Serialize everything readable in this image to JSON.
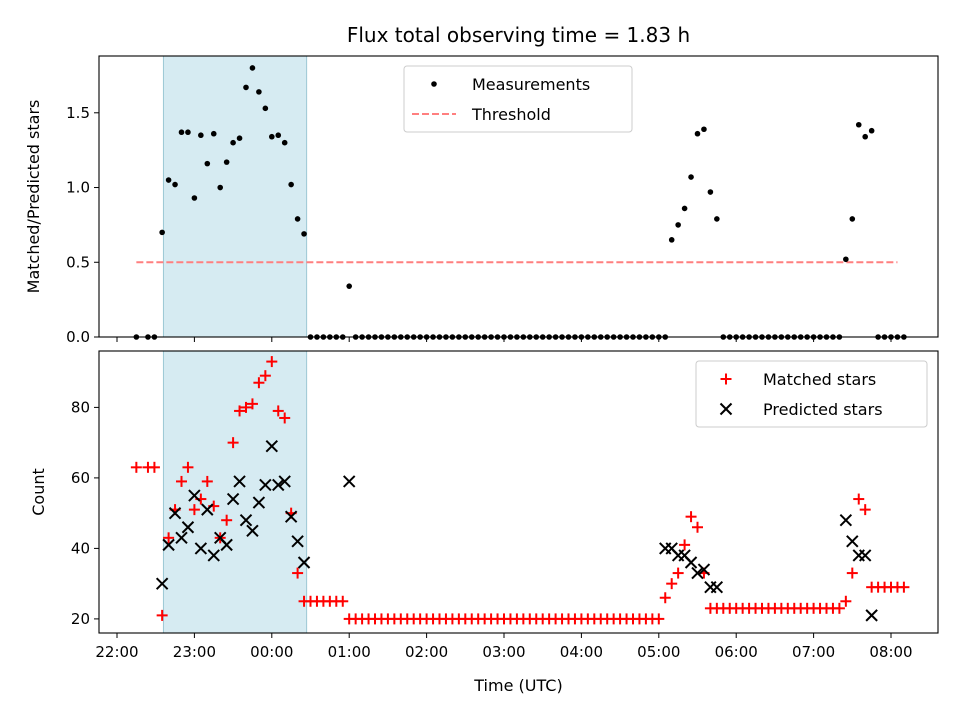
{
  "chart_data": [
    {
      "type": "scatter",
      "title": "Flux total observing time = 1.83 h",
      "ylabel": "Matched/Predicted stars",
      "xlabel": "",
      "xlim": [
        "22:00",
        "08:00"
      ],
      "ylim": [
        0,
        1.88
      ],
      "yticks": [
        "0.0",
        "0.5",
        "1.0",
        "1.5"
      ],
      "shaded_interval": [
        "22:36",
        "00:27"
      ],
      "legend_position": "top-center",
      "series": [
        {
          "name": "Measurements",
          "color": "#000000",
          "marker": "dot",
          "x": [
            "22:15",
            "22:24",
            "22:29",
            "22:35",
            "22:40",
            "22:45",
            "22:50",
            "22:55",
            "23:00",
            "23:05",
            "23:10",
            "23:15",
            "23:20",
            "23:25",
            "23:30",
            "23:35",
            "23:40",
            "23:45",
            "23:50",
            "23:55",
            "24:00",
            "24:05",
            "24:10",
            "24:15",
            "24:20",
            "24:25",
            "24:30",
            "24:35",
            "24:40",
            "24:45",
            "24:50",
            "24:55",
            "25:00",
            "25:05",
            "25:10",
            "25:15",
            "25:20",
            "25:25",
            "25:30",
            "25:35",
            "25:40",
            "25:45",
            "25:50",
            "25:55",
            "26:00",
            "26:05",
            "26:10",
            "26:15",
            "26:20",
            "26:25",
            "26:30",
            "26:35",
            "26:40",
            "26:45",
            "26:50",
            "26:55",
            "27:00",
            "27:05",
            "27:10",
            "27:15",
            "27:20",
            "27:25",
            "27:30",
            "27:35",
            "27:40",
            "27:45",
            "27:50",
            "27:55",
            "28:00",
            "28:05",
            "28:10",
            "28:15",
            "28:20",
            "28:25",
            "28:30",
            "28:35",
            "28:40",
            "28:45",
            "28:50",
            "28:55",
            "29:00",
            "29:05",
            "29:10",
            "29:15",
            "29:20",
            "29:25",
            "29:30",
            "29:35",
            "29:40",
            "29:45",
            "29:50",
            "29:55",
            "30:00",
            "30:05",
            "30:10",
            "30:15",
            "30:20",
            "30:25",
            "30:30",
            "30:35",
            "30:40",
            "30:45",
            "30:50",
            "30:55",
            "31:00",
            "31:05",
            "31:10",
            "31:15",
            "31:20",
            "31:25",
            "31:30",
            "31:35",
            "31:40",
            "31:45",
            "31:50",
            "31:55",
            "32:00",
            "32:05",
            "32:10"
          ],
          "y": [
            0,
            0,
            0,
            0.7,
            1.05,
            1.02,
            1.37,
            1.37,
            0.93,
            1.35,
            1.16,
            1.36,
            1.0,
            1.17,
            1.3,
            1.33,
            1.67,
            1.8,
            1.64,
            1.53,
            1.34,
            1.35,
            1.3,
            1.02,
            0.79,
            0.69,
            0,
            0,
            0,
            0,
            0,
            0,
            0.34,
            0,
            0,
            0,
            0,
            0,
            0,
            0,
            0,
            0,
            0,
            0,
            0,
            0,
            0,
            0,
            0,
            0,
            0,
            0,
            0,
            0,
            0,
            0,
            0,
            0,
            0,
            0,
            0,
            0,
            0,
            0,
            0,
            0,
            0,
            0,
            0,
            0,
            0,
            0,
            0,
            0,
            0,
            0,
            0,
            0,
            0,
            0,
            0,
            0,
            0.65,
            0.75,
            0.86,
            1.07,
            1.36,
            1.39,
            0.97,
            0.79,
            0,
            0,
            0,
            0,
            0,
            0,
            0,
            0,
            0,
            0,
            0,
            0,
            0,
            0,
            0,
            0,
            0,
            0,
            0,
            0.52,
            0.79,
            1.42,
            1.34,
            1.38,
            0,
            0,
            0,
            0,
            0
          ]
        },
        {
          "name": "Threshold",
          "color": "#ff7f7f",
          "style": "dashed",
          "x": [
            "22:15",
            "32:05"
          ],
          "y": [
            0.5,
            0.5
          ]
        }
      ]
    },
    {
      "type": "scatter",
      "title": "",
      "ylabel": "Count",
      "xlabel": "Time (UTC)",
      "xlim": [
        "22:00",
        "08:00"
      ],
      "ylim": [
        16,
        96
      ],
      "yticks": [
        "20",
        "40",
        "60",
        "80"
      ],
      "xticks": [
        "22:00",
        "23:00",
        "00:00",
        "01:00",
        "02:00",
        "03:00",
        "04:00",
        "05:00",
        "06:00",
        "07:00",
        "08:00"
      ],
      "shaded_interval": [
        "22:36",
        "00:27"
      ],
      "legend_position": "top-right",
      "series": [
        {
          "name": "Matched stars",
          "color": "#ff0000",
          "marker": "plus",
          "x": [
            "22:15",
            "22:24",
            "22:29",
            "22:35",
            "22:40",
            "22:45",
            "22:50",
            "22:55",
            "23:00",
            "23:05",
            "23:10",
            "23:15",
            "23:20",
            "23:25",
            "23:30",
            "23:35",
            "23:40",
            "23:45",
            "23:50",
            "23:55",
            "24:00",
            "24:05",
            "24:10",
            "24:15",
            "24:20",
            "24:25",
            "24:30",
            "24:35",
            "24:40",
            "24:45",
            "24:50",
            "24:55",
            "25:00",
            "25:05",
            "25:10",
            "25:15",
            "25:20",
            "25:25",
            "25:30",
            "25:35",
            "25:40",
            "25:45",
            "25:50",
            "25:55",
            "26:00",
            "26:05",
            "26:10",
            "26:15",
            "26:20",
            "26:25",
            "26:30",
            "26:35",
            "26:40",
            "26:45",
            "26:50",
            "26:55",
            "27:00",
            "27:05",
            "27:10",
            "27:15",
            "27:20",
            "27:25",
            "27:30",
            "27:35",
            "27:40",
            "27:45",
            "27:50",
            "27:55",
            "28:00",
            "28:05",
            "28:10",
            "28:15",
            "28:20",
            "28:25",
            "28:30",
            "28:35",
            "28:40",
            "28:45",
            "28:50",
            "28:55",
            "29:00",
            "29:05",
            "29:10",
            "29:15",
            "29:20",
            "29:25",
            "29:30",
            "29:35",
            "29:40",
            "29:45",
            "29:50",
            "29:55",
            "30:00",
            "30:05",
            "30:10",
            "30:15",
            "30:20",
            "30:25",
            "30:30",
            "30:35",
            "30:40",
            "30:45",
            "30:50",
            "30:55",
            "31:00",
            "31:05",
            "31:10",
            "31:15",
            "31:20",
            "31:25",
            "31:30",
            "31:35",
            "31:40",
            "31:45",
            "31:50",
            "31:55",
            "32:00",
            "32:05",
            "32:10"
          ],
          "y": [
            63,
            63,
            63,
            21,
            43,
            51,
            59,
            63,
            51,
            54,
            59,
            52,
            43,
            48,
            70,
            79,
            80,
            81,
            87,
            89,
            93,
            79,
            77,
            50,
            33,
            25,
            25,
            25,
            25,
            25,
            25,
            25,
            20,
            20,
            20,
            20,
            20,
            20,
            20,
            20,
            20,
            20,
            20,
            20,
            20,
            20,
            20,
            20,
            20,
            20,
            20,
            20,
            20,
            20,
            20,
            20,
            20,
            20,
            20,
            20,
            20,
            20,
            20,
            20,
            20,
            20,
            20,
            20,
            20,
            20,
            20,
            20,
            20,
            20,
            20,
            20,
            20,
            20,
            20,
            20,
            20,
            26,
            30,
            33,
            41,
            49,
            46,
            33,
            23,
            23,
            23,
            23,
            23,
            23,
            23,
            23,
            23,
            23,
            23,
            23,
            23,
            23,
            23,
            23,
            23,
            23,
            23,
            23,
            23,
            25,
            33,
            54,
            51,
            29,
            29,
            29,
            29,
            29,
            29
          ]
        },
        {
          "name": "Predicted stars",
          "color": "#000000",
          "marker": "x",
          "x": [
            "22:35",
            "22:40",
            "22:45",
            "22:50",
            "22:55",
            "23:00",
            "23:05",
            "23:10",
            "23:15",
            "23:20",
            "23:25",
            "23:30",
            "23:35",
            "23:40",
            "23:45",
            "23:50",
            "23:55",
            "24:00",
            "24:05",
            "24:10",
            "24:15",
            "24:20",
            "24:25",
            "25:00",
            "29:05",
            "29:10",
            "29:15",
            "29:20",
            "29:25",
            "29:30",
            "29:35",
            "29:40",
            "29:45",
            "31:25",
            "31:30",
            "31:35",
            "31:40",
            "31:45"
          ],
          "y": [
            30,
            41,
            50,
            43,
            46,
            55,
            40,
            51,
            38,
            43,
            41,
            54,
            59,
            48,
            45,
            53,
            58,
            69,
            58,
            59,
            49,
            42,
            36,
            59,
            40,
            40,
            38,
            38,
            36,
            33,
            34,
            29,
            29,
            48,
            42,
            38,
            38,
            21
          ]
        }
      ]
    }
  ]
}
